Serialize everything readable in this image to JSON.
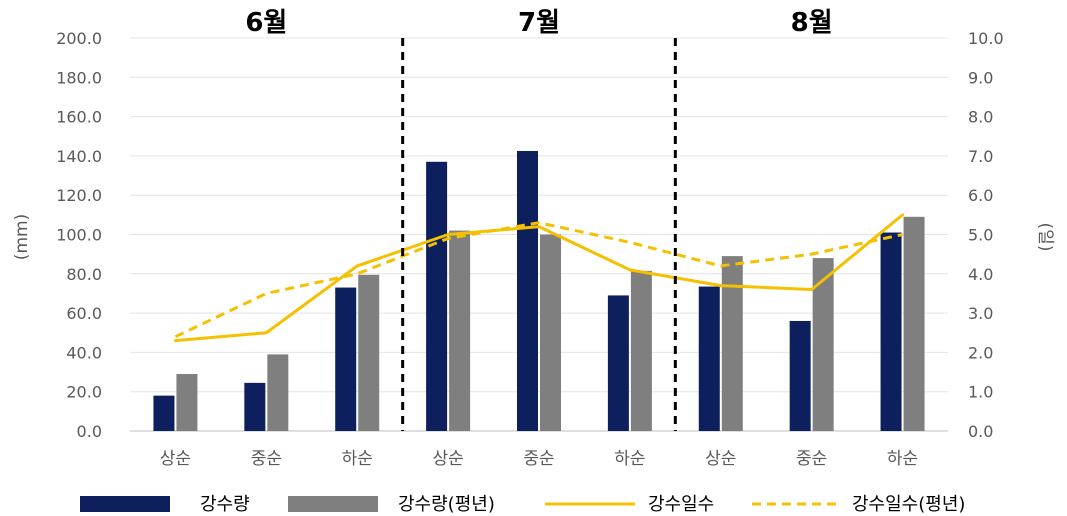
{
  "chart_data": {
    "type": "bar",
    "categories": [
      "상순",
      "중순",
      "하순",
      "상순",
      "중순",
      "하순",
      "상순",
      "중순",
      "하순"
    ],
    "groups": [
      "6월",
      "7월",
      "8월"
    ],
    "ylabel": "(mm)",
    "y2label": "(일)",
    "ylim": [
      0,
      200
    ],
    "y2lim": [
      0,
      10
    ],
    "yticks": [
      "0.0",
      "20.0",
      "40.0",
      "60.0",
      "80.0",
      "100.0",
      "120.0",
      "140.0",
      "160.0",
      "180.0",
      "200.0"
    ],
    "y2ticks": [
      "0.0",
      "1.0",
      "2.0",
      "3.0",
      "4.0",
      "5.0",
      "6.0",
      "7.0",
      "8.0",
      "9.0",
      "10.0"
    ],
    "grid": true,
    "legend_position": "bottom",
    "series": [
      {
        "name": "강수량",
        "type": "bar",
        "axis": "left",
        "color": "#0d1f5c",
        "values": [
          18.0,
          24.5,
          73.0,
          137.0,
          142.5,
          69.0,
          73.5,
          56.0,
          101.0
        ]
      },
      {
        "name": "강수량(평년)",
        "type": "bar",
        "axis": "left",
        "color": "#7f7f7f",
        "values": [
          29.0,
          39.0,
          79.5,
          102.0,
          100.0,
          81.5,
          89.0,
          88.0,
          109.0
        ]
      },
      {
        "name": "강수일수",
        "type": "line",
        "axis": "right",
        "color": "#f5c000",
        "values": [
          2.3,
          2.5,
          4.2,
          5.0,
          5.2,
          4.1,
          3.7,
          3.6,
          5.5
        ]
      },
      {
        "name": "강수일수(평년)",
        "type": "line",
        "axis": "right",
        "color": "#f5c000",
        "dashed": true,
        "values": [
          2.4,
          3.5,
          4.0,
          4.9,
          5.3,
          4.8,
          4.2,
          4.5,
          5.0
        ]
      }
    ]
  }
}
